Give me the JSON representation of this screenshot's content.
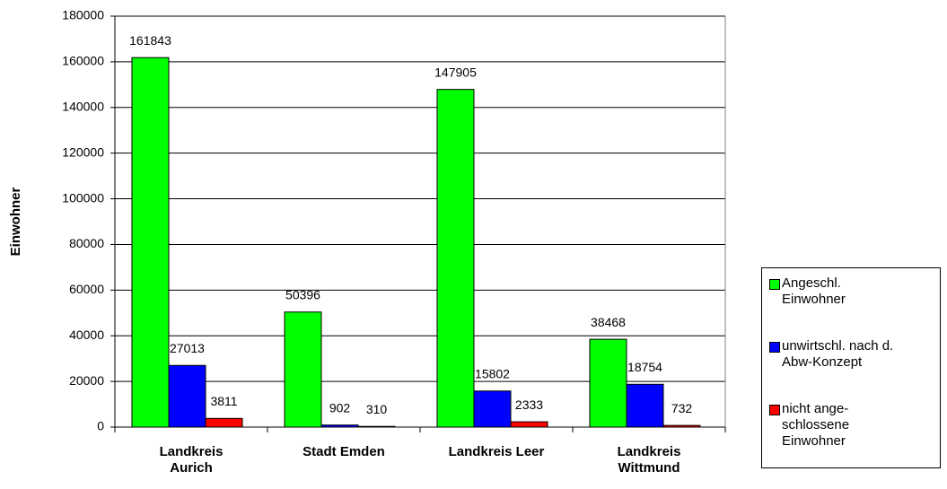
{
  "chart_data": {
    "type": "bar",
    "y_label": "Einwohner",
    "categories": [
      "Landkreis\nAurich",
      "Stadt Emden",
      "Landkreis Leer",
      "Landkreis\nWittmund"
    ],
    "series": [
      {
        "name": "Angeschl.\nEinwohner",
        "color": "#00ff00",
        "values": [
          161843,
          50396,
          147905,
          38468
        ]
      },
      {
        "name": "unwirtschl. nach d.\nAbw-Konzept",
        "color": "#0000ff",
        "values": [
          27013,
          902,
          15802,
          18754
        ]
      },
      {
        "name": "nicht ange-\nschlossene\nEinwohner",
        "color": "#ff0000",
        "values": [
          3811,
          310,
          2333,
          732
        ]
      }
    ],
    "ylim": [
      0,
      180000
    ],
    "yticks": [
      0,
      20000,
      40000,
      60000,
      80000,
      100000,
      120000,
      140000,
      160000,
      180000
    ],
    "grid": true,
    "legend": "right"
  }
}
